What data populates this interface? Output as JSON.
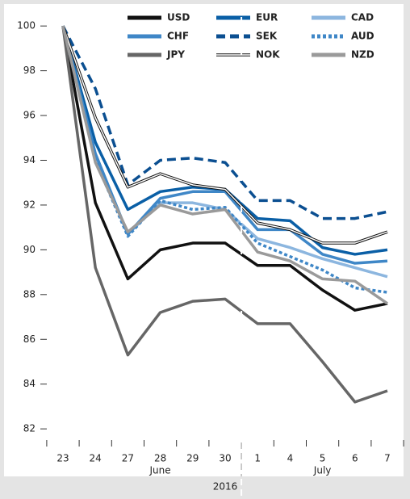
{
  "chart_data": {
    "type": "line",
    "categories": [
      "23",
      "24",
      "27",
      "28",
      "29",
      "30",
      "1",
      "4",
      "5",
      "6",
      "7"
    ],
    "x_group_labels": [
      "June",
      "July"
    ],
    "x_label": "2016",
    "ylim": [
      81.5,
      100.8
    ],
    "yticks": [
      82,
      84,
      86,
      88,
      90,
      92,
      94,
      96,
      98,
      100
    ],
    "series": [
      {
        "name": "USD",
        "color": "#111111",
        "style": "solid",
        "values": [
          100,
          92.1,
          88.7,
          90.0,
          90.3,
          90.3,
          89.3,
          89.3,
          88.2,
          87.3,
          87.6
        ]
      },
      {
        "name": "EUR",
        "color": "#0a5fa6",
        "style": "solid",
        "values": [
          100,
          94.8,
          91.8,
          92.6,
          92.8,
          92.7,
          91.4,
          91.3,
          90.1,
          89.8,
          90.0
        ]
      },
      {
        "name": "CAD",
        "color": "#8cb6df",
        "style": "solid",
        "values": [
          100,
          94.2,
          90.7,
          92.1,
          92.1,
          91.8,
          90.5,
          90.1,
          89.6,
          89.2,
          88.8
        ]
      },
      {
        "name": "CHF",
        "color": "#3f87c7",
        "style": "solid",
        "values": [
          100,
          94.3,
          90.7,
          92.3,
          92.6,
          92.6,
          90.9,
          90.9,
          89.8,
          89.4,
          89.5
        ]
      },
      {
        "name": "SEK",
        "color": "#0b4f91",
        "style": "dashed",
        "values": [
          100,
          97.2,
          92.9,
          94.0,
          94.1,
          93.9,
          92.2,
          92.2,
          91.4,
          91.4,
          91.7
        ]
      },
      {
        "name": "AUD",
        "color": "#3f87c7",
        "style": "dotted",
        "values": [
          100,
          94.0,
          90.6,
          92.2,
          91.8,
          91.9,
          90.3,
          89.7,
          89.1,
          88.3,
          88.1
        ]
      },
      {
        "name": "JPY",
        "color": "#666666",
        "style": "solid",
        "values": [
          100,
          89.2,
          85.3,
          87.2,
          87.7,
          87.8,
          86.7,
          86.7,
          85.0,
          83.2,
          83.7
        ]
      },
      {
        "name": "NOK",
        "color": "#111111",
        "style": "double",
        "values": [
          100,
          95.9,
          92.8,
          93.4,
          92.9,
          92.7,
          91.2,
          90.9,
          90.3,
          90.3,
          90.8
        ]
      },
      {
        "name": "NZD",
        "color": "#9a9a9a",
        "style": "solid",
        "values": [
          100,
          93.9,
          90.8,
          92.0,
          91.6,
          91.8,
          89.9,
          89.5,
          88.7,
          88.6,
          87.6
        ]
      }
    ]
  }
}
